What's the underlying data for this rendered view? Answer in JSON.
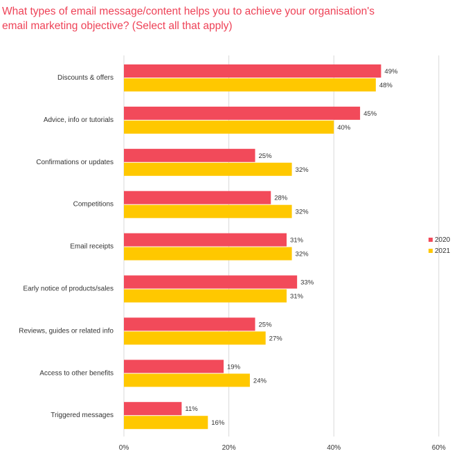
{
  "title_lines": [
    "What types of email message/content helps you to achieve your organisation's",
    "email marketing objective? (Select all that apply)"
  ],
  "colors": {
    "title": "#ee4257",
    "s2020": "#f24a5a",
    "s2021": "#ffc800",
    "grid": "#d9d9d9",
    "text": "#333333"
  },
  "chart_data": {
    "type": "bar",
    "orientation": "horizontal",
    "title": "What types of email message/content helps you to achieve your organisation's email marketing objective? (Select all that apply)",
    "categories": [
      "Discounts & offers",
      "Advice, info or tutorials",
      "Confirmations or updates",
      "Competitions",
      "Email receipts",
      "Early notice of products/sales",
      "Reviews, guides or related info",
      "Access to other benefits",
      "Triggered messages"
    ],
    "series": [
      {
        "name": "2020",
        "values": [
          49,
          45,
          25,
          28,
          31,
          33,
          25,
          19,
          11
        ]
      },
      {
        "name": "2021",
        "values": [
          48,
          40,
          32,
          32,
          32,
          31,
          27,
          24,
          16
        ]
      }
    ],
    "value_suffix": "%",
    "xlim": [
      0,
      60
    ],
    "xticks": [
      "0%",
      "20%",
      "40%",
      "60%"
    ],
    "xtick_values": [
      0,
      20,
      40,
      60
    ],
    "legend_position": "right",
    "grid": "vertical"
  }
}
